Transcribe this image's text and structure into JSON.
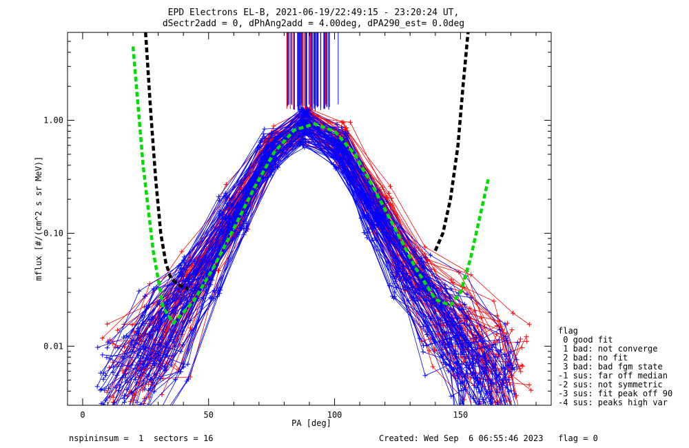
{
  "chart_data": {
    "type": "line",
    "title": "EPD Electrons EL-B, 2021-06-19/22:49:15 - 23:20:24 UT,",
    "subtitle": "dSectr2add = 0, dPhAng2add = 4.00deg, dPA290_est=    0.0deg",
    "xlabel": "PA [deg]",
    "ylabel": "mflux [#/(cm^2 s sr MeV)]",
    "xlim": [
      -6,
      186
    ],
    "ylim": [
      0.003,
      6
    ],
    "yscale": "log",
    "xticks": [
      0,
      50,
      100,
      150
    ],
    "xtick_labels": [
      "0",
      "50",
      "100",
      "150"
    ],
    "yticks": [
      0.01,
      0.1,
      1.0
    ],
    "ytick_labels": [
      "0.01",
      "0.10",
      "1.00"
    ],
    "series": [
      {
        "color": "#ff0000",
        "style": "thin lines with plus markers",
        "x": [
          20,
          33,
          47,
          61,
          75,
          89,
          103,
          118,
          131,
          145,
          159,
          165
        ],
        "y": [
          0.006,
          0.014,
          0.045,
          0.16,
          0.55,
          0.95,
          0.6,
          0.16,
          0.045,
          0.017,
          0.008,
          0.006
        ]
      },
      {
        "color": "#0000ff",
        "style": "thin lines with plus markers",
        "x": [
          18,
          32,
          46,
          60,
          74,
          88,
          102,
          116,
          130,
          144,
          158,
          161
        ],
        "y": [
          0.005,
          0.012,
          0.04,
          0.14,
          0.5,
          0.9,
          0.55,
          0.14,
          0.04,
          0.015,
          0.006,
          0.004
        ]
      },
      {
        "color": "#00dd00",
        "style": "thick dashed fit",
        "x": [
          20,
          24,
          28,
          32,
          36,
          44,
          52,
          60,
          68,
          76,
          84,
          92,
          100,
          108,
          116,
          124,
          132,
          140,
          146,
          150,
          154,
          158,
          161
        ],
        "y": [
          4.5,
          0.4,
          0.07,
          0.022,
          0.016,
          0.025,
          0.05,
          0.11,
          0.25,
          0.52,
          0.82,
          0.93,
          0.8,
          0.5,
          0.24,
          0.11,
          0.05,
          0.026,
          0.023,
          0.03,
          0.06,
          0.15,
          0.3
        ]
      },
      {
        "color": "#000000",
        "style": "thick dashed median",
        "x": [
          25,
          27,
          29,
          31,
          33,
          35,
          38,
          42,
          140,
          143,
          146,
          149,
          151,
          153
        ],
        "y": [
          6,
          1.2,
          0.3,
          0.1,
          0.055,
          0.04,
          0.035,
          0.032,
          0.07,
          0.1,
          0.2,
          0.6,
          2,
          6
        ]
      }
    ],
    "legend_position": "lower-right outside",
    "legend": [
      "flag",
      " 0 good fit",
      " 1 bad: not converge",
      " 2 bad: no fit",
      " 3 bad: bad fgm state",
      "-1 sus: far off median",
      "-2 sus: not symmetric",
      "-3 sus: fit peak off 90",
      "-4 sus: peaks high var"
    ],
    "footer_left": "nspininsum =  1  sectors = 16",
    "footer_right": "Created: Wed Sep  6 06:55:46 2023   flag = 0"
  }
}
